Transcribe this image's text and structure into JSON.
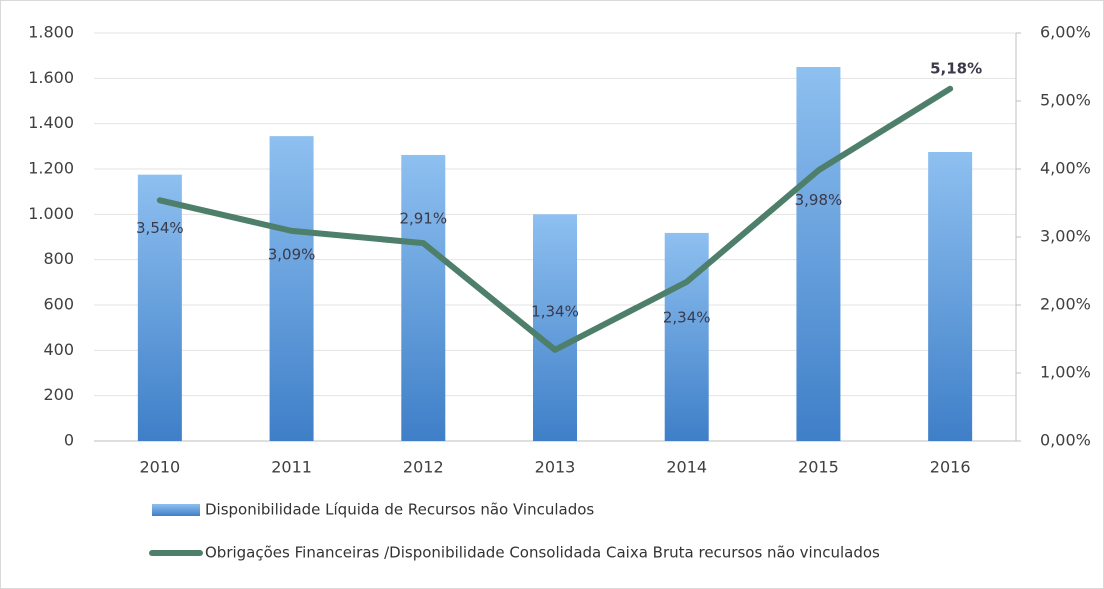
{
  "chart_data": {
    "type": "bar",
    "categories": [
      "2010",
      "2011",
      "2012",
      "2013",
      "2014",
      "2015",
      "2016"
    ],
    "series": [
      {
        "name": "Disponibilidade Líquida de Recursos não Vinculados",
        "type": "bar",
        "color": "#5b9bd5",
        "values": [
          1175,
          1345,
          1262,
          1000,
          918,
          1650,
          1275
        ]
      },
      {
        "name": "Obrigações Financeiras /Disponibilidade Consolidada Caixa Bruta recursos não vinculados",
        "type": "line",
        "axis": "y2",
        "color": "#4e7f6a",
        "values": [
          3.54,
          3.09,
          2.91,
          1.34,
          2.34,
          3.98,
          5.18
        ],
        "value_labels": [
          "3,54%",
          "3,09%",
          "2,91%",
          "1,34%",
          "2,34%",
          "3,98%",
          "5,18%"
        ]
      }
    ],
    "ylim": [
      0,
      1800
    ],
    "yticks": [
      0,
      200,
      400,
      600,
      800,
      {
        "value": 1000,
        "label": "1.000"
      },
      {
        "value": 1200,
        "label": "1.200"
      },
      {
        "value": 1400,
        "label": "1.400"
      },
      {
        "value": 1600,
        "label": "1.600"
      },
      {
        "value": 1800,
        "label": "1.800"
      }
    ],
    "y2lim": [
      0,
      6
    ],
    "y2ticks": [
      {
        "value": 0,
        "label": "0,00%"
      },
      {
        "value": 1,
        "label": "1,00%"
      },
      {
        "value": 2,
        "label": "2,00%"
      },
      {
        "value": 3,
        "label": "3,00%"
      },
      {
        "value": 4,
        "label": "4,00%"
      },
      {
        "value": 5,
        "label": "5,00%"
      },
      {
        "value": 6,
        "label": "6,00%"
      }
    ],
    "grid": true
  }
}
